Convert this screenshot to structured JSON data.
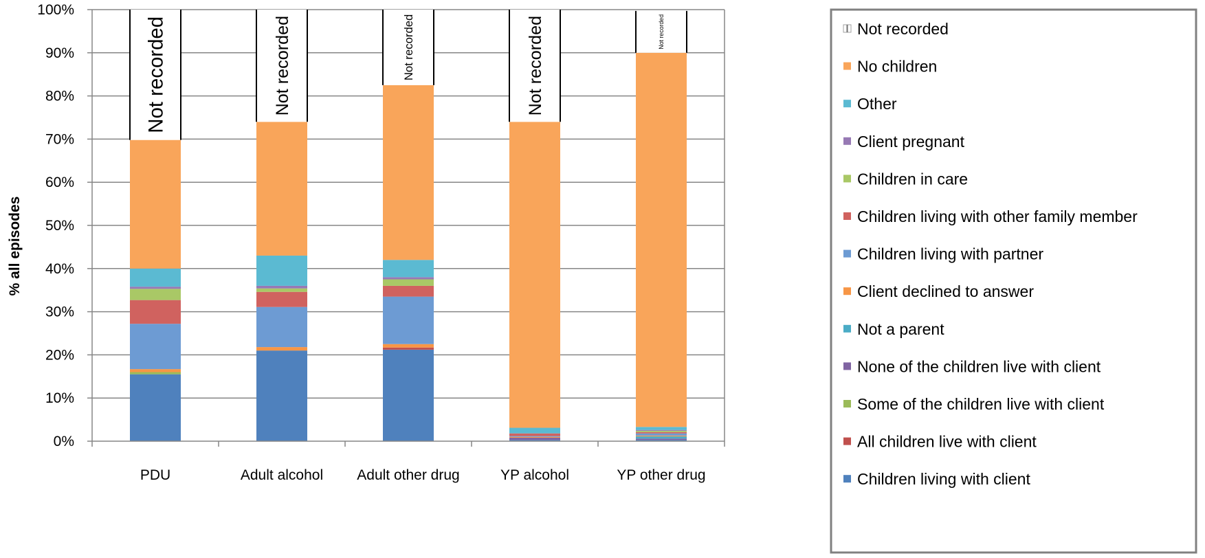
{
  "chart_data": {
    "type": "bar",
    "stacked": true,
    "ylabel": "% all episodes",
    "xlabel": "",
    "title": "",
    "ylim": [
      0,
      100
    ],
    "yticks": [
      "0%",
      "10%",
      "20%",
      "30%",
      "40%",
      "50%",
      "60%",
      "70%",
      "80%",
      "90%",
      "100%"
    ],
    "grid": true,
    "legend_position": "right",
    "categories": [
      "PDU",
      "Adult alcohol",
      "Adult other drug",
      "YP alcohol",
      "YP other drug"
    ],
    "series": [
      {
        "name": "Children living with client",
        "color": "#4f81bd",
        "values": [
          15.5,
          21.0,
          21.2,
          0.3,
          0.3
        ]
      },
      {
        "name": "All children live with client",
        "color": "#c0504d",
        "values": [
          0.0,
          0.0,
          0.5,
          0.0,
          0.0
        ]
      },
      {
        "name": "Some of the children live with client",
        "color": "#9bbb59",
        "values": [
          0.5,
          0.0,
          0.0,
          0.0,
          0.0
        ]
      },
      {
        "name": "None of the children live with client",
        "color": "#8064a2",
        "values": [
          0.0,
          0.0,
          0.0,
          0.5,
          0.3
        ]
      },
      {
        "name": "Not a parent",
        "color": "#4bacc6",
        "values": [
          0.0,
          0.0,
          0.0,
          0.0,
          0.5
        ]
      },
      {
        "name": "Client declined to answer",
        "color": "#f79646",
        "values": [
          0.7,
          0.8,
          0.8,
          0.2,
          0.2
        ]
      },
      {
        "name": "Children living with partner",
        "color": "#6d9bd3",
        "values": [
          10.5,
          9.3,
          11.0,
          0.2,
          0.5
        ]
      },
      {
        "name": "Children living with other family member",
        "color": "#d0625f",
        "values": [
          5.5,
          3.5,
          2.5,
          0.6,
          0.3
        ]
      },
      {
        "name": "Children in care",
        "color": "#a9c866",
        "values": [
          2.6,
          0.8,
          1.5,
          0.0,
          0.3
        ]
      },
      {
        "name": "Client pregnant",
        "color": "#9779b4",
        "values": [
          0.5,
          0.6,
          0.5,
          0.0,
          0.2
        ]
      },
      {
        "name": "Other",
        "color": "#5bbad2",
        "values": [
          4.2,
          7.0,
          4.0,
          1.3,
          0.7
        ]
      },
      {
        "name": "No children",
        "color": "#f9a55a",
        "values": [
          29.8,
          31.0,
          40.5,
          70.9,
          86.7
        ]
      },
      {
        "name": "Not recorded",
        "color": "#ffffff",
        "values": [
          30.2,
          26.0,
          17.5,
          26.0,
          9.7
        ]
      }
    ],
    "bar_annotations": [
      "Not recorded",
      "Not recorded",
      "Not recorded",
      "Not recorded",
      "Not recorded"
    ],
    "legend_order": [
      "Not recorded",
      "No children",
      "Other",
      "Client pregnant",
      "Children in care",
      "Children living with other family member",
      "Children living with partner",
      "Client declined to answer",
      "Not a parent",
      "None of the children live with client",
      "Some of the children live with client",
      "All children live with client",
      "Children living with client"
    ]
  }
}
